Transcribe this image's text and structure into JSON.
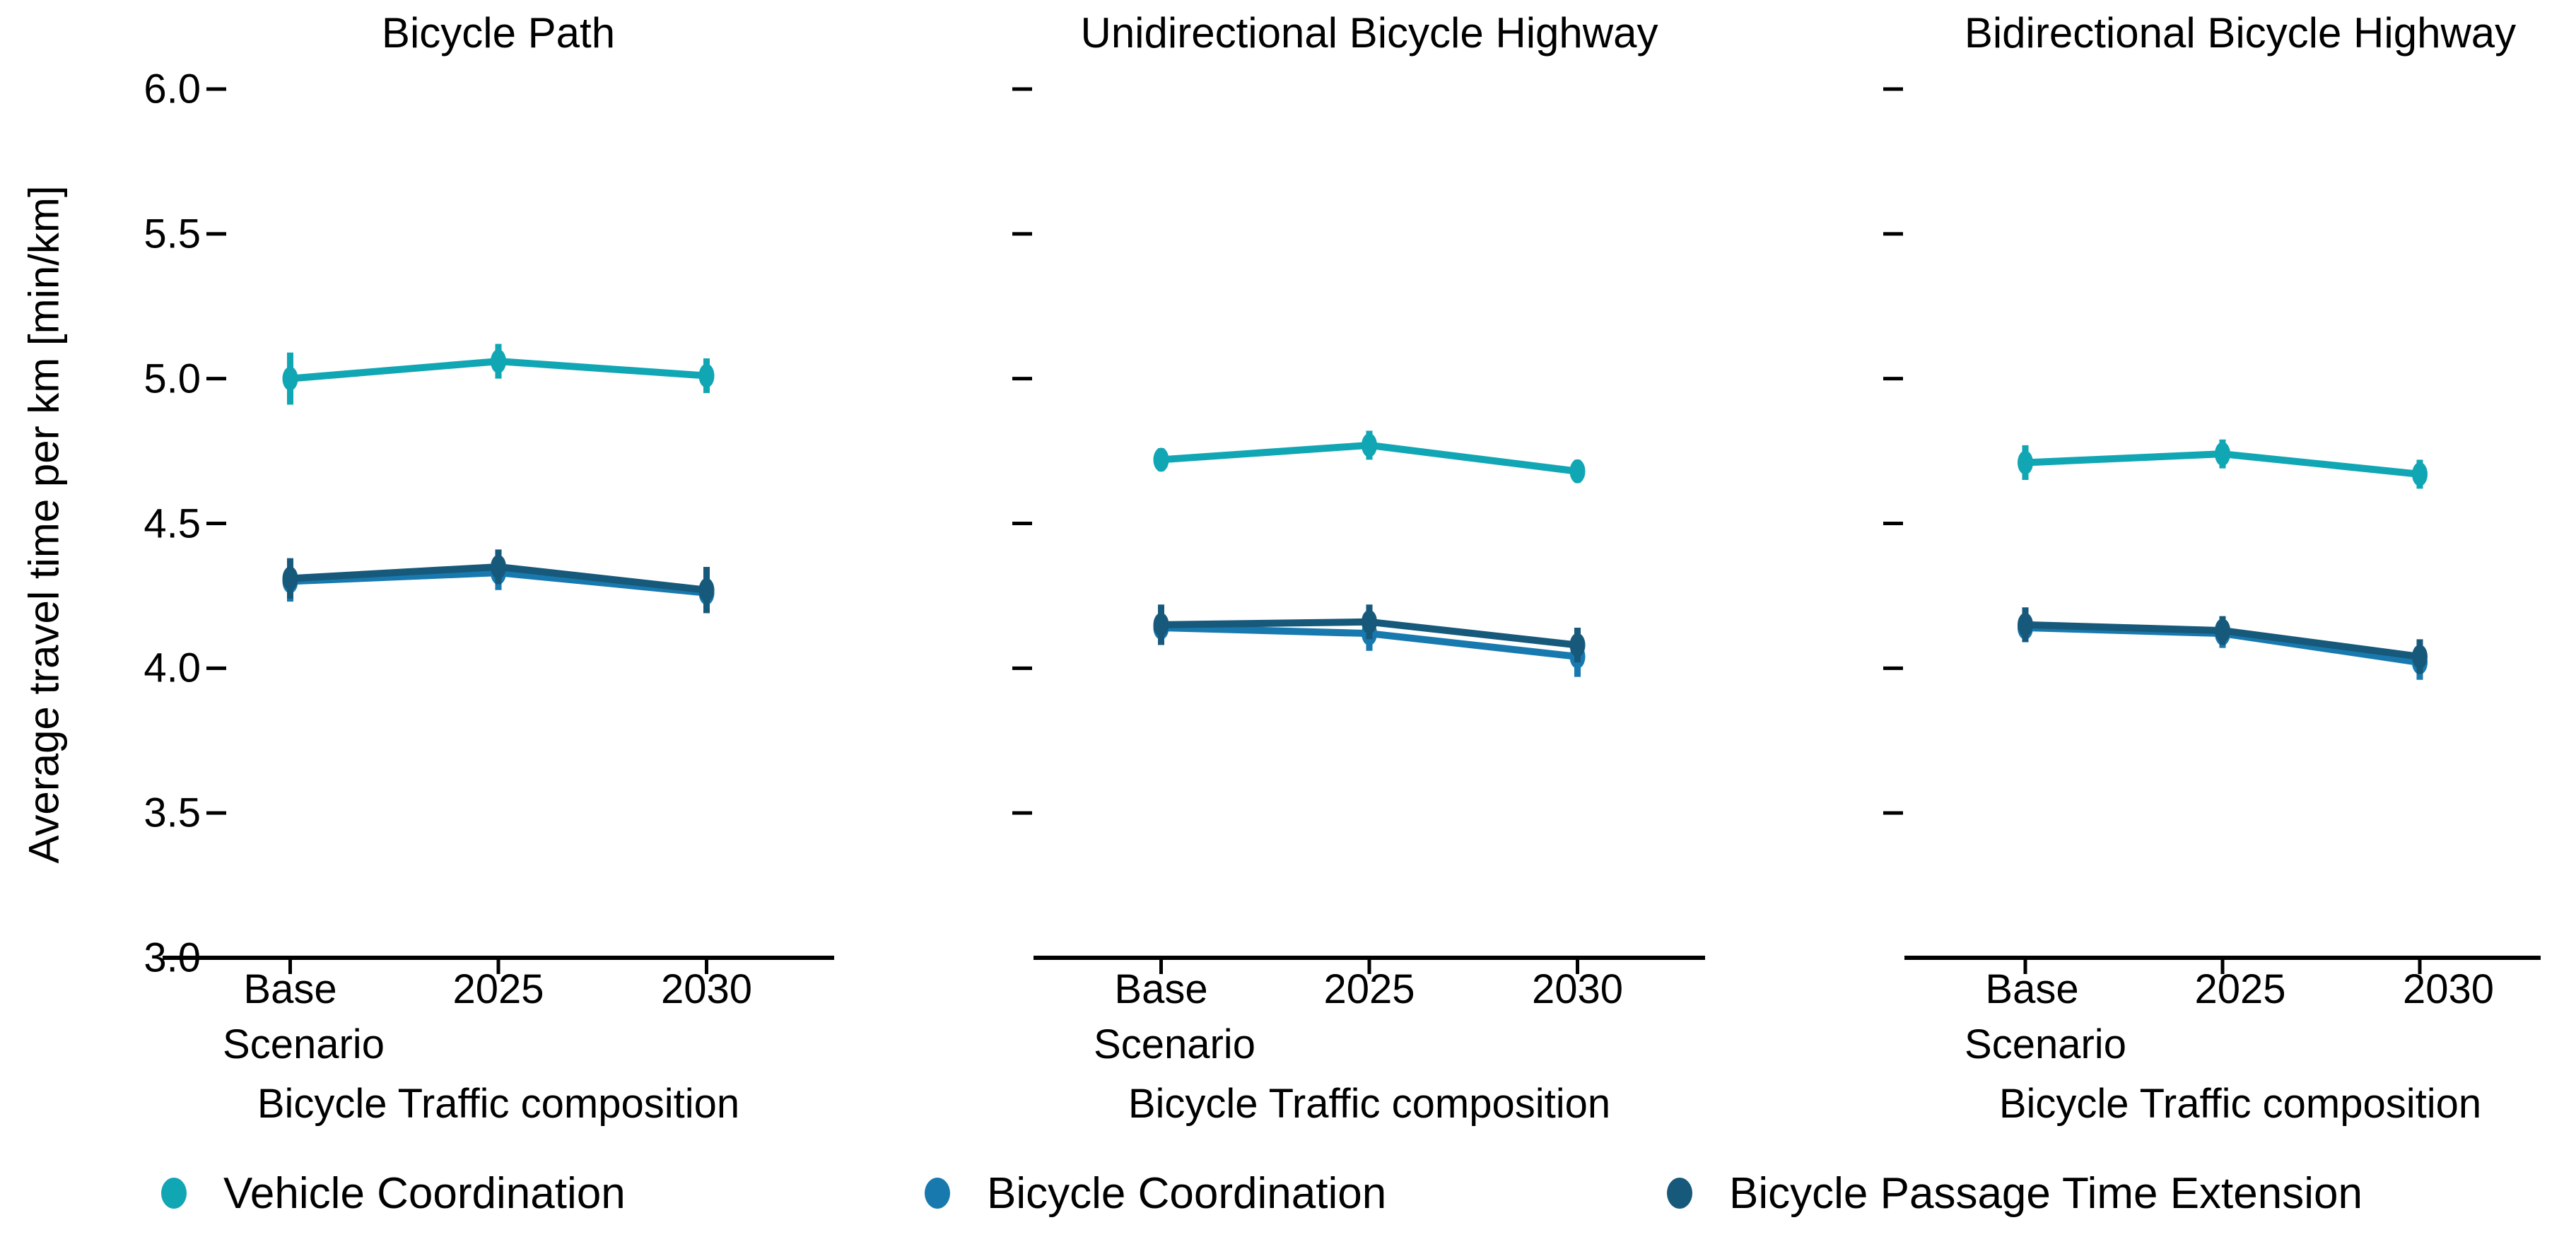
{
  "chart_data": {
    "type": "line",
    "ylabel": "Average travel time per km [min/km]",
    "xlabel": "Bicycle Traffic composition",
    "ylim": [
      3.0,
      6.0
    ],
    "yticks": [
      3.0,
      3.5,
      4.0,
      4.5,
      5.0,
      5.5,
      6.0
    ],
    "grid": "off",
    "legend_position": "bottom",
    "categories": [
      {
        "label": "Base",
        "sublabel": "Scenario"
      },
      {
        "label": "2025",
        "sublabel": ""
      },
      {
        "label": "2030",
        "sublabel": ""
      }
    ],
    "legend": [
      {
        "name": "Vehicle Coordination",
        "color": "#11A6B4"
      },
      {
        "name": "Bicycle Coordination",
        "color": "#1879AF"
      },
      {
        "name": "Bicycle Passage Time Extension",
        "color": "#17597B"
      }
    ],
    "panels": [
      {
        "title": "Bicycle Path",
        "series": [
          {
            "name": "Vehicle Coordination",
            "values": [
              5.0,
              5.06,
              5.01
            ],
            "errors": [
              0.09,
              0.06,
              0.06
            ]
          },
          {
            "name": "Bicycle Coordination",
            "values": [
              4.3,
              4.33,
              4.26
            ],
            "errors": [
              0.07,
              0.06,
              0.07
            ]
          },
          {
            "name": "Bicycle Passage Time Extension",
            "values": [
              4.31,
              4.35,
              4.27
            ],
            "errors": [
              0.07,
              0.06,
              0.08
            ]
          }
        ]
      },
      {
        "title": "Unidirectional Bicycle Highway",
        "series": [
          {
            "name": "Vehicle Coordination",
            "values": [
              4.72,
              4.77,
              4.68
            ],
            "errors": [
              0.04,
              0.05,
              0.04
            ]
          },
          {
            "name": "Bicycle Coordination",
            "values": [
              4.14,
              4.12,
              4.04
            ],
            "errors": [
              0.06,
              0.06,
              0.07
            ]
          },
          {
            "name": "Bicycle Passage Time Extension",
            "values": [
              4.15,
              4.16,
              4.08
            ],
            "errors": [
              0.07,
              0.06,
              0.06
            ]
          }
        ]
      },
      {
        "title": "Bidirectional Bicycle Highway",
        "series": [
          {
            "name": "Vehicle Coordination",
            "values": [
              4.71,
              4.74,
              4.67
            ],
            "errors": [
              0.06,
              0.05,
              0.05
            ]
          },
          {
            "name": "Bicycle Coordination",
            "values": [
              4.14,
              4.12,
              4.02
            ],
            "errors": [
              0.05,
              0.05,
              0.06
            ]
          },
          {
            "name": "Bicycle Passage Time Extension",
            "values": [
              4.15,
              4.13,
              4.04
            ],
            "errors": [
              0.06,
              0.05,
              0.06
            ]
          }
        ]
      }
    ]
  }
}
